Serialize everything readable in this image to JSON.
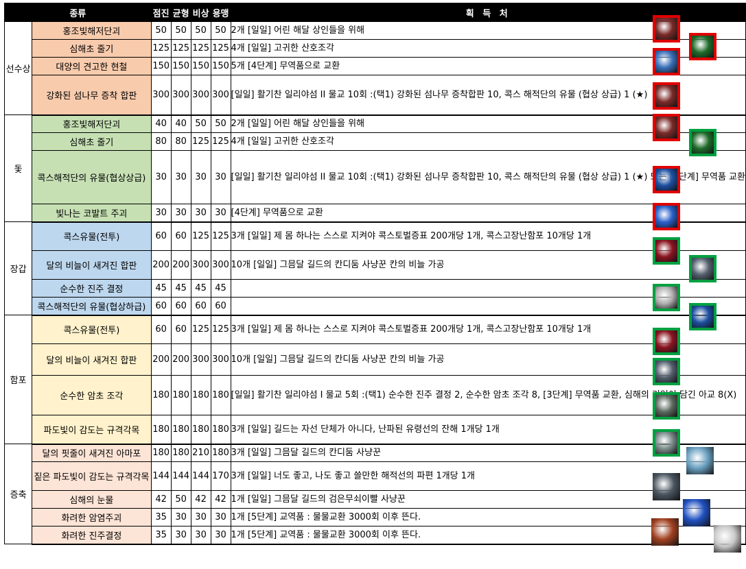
{
  "headers": {
    "kind": "종류",
    "jeomjin": "점진",
    "gyunhyeong": "균형",
    "bisang": "비상",
    "yongmaeng": "용맹",
    "source": "획 득 처"
  },
  "colors": {
    "jeomjin": "#ffff00",
    "gyunhyeong": "#92d050",
    "bisang": "#00b0f0",
    "yongmaeng": "#ff7c80",
    "orange_rows": "#f8cbad",
    "green_rows": "#c6e0b4",
    "blue_rows": "#bdd7ee",
    "yellow_rows": "#fff2cc",
    "peach_rows": "#fce4d6",
    "icon_frame_red": "#e00000",
    "icon_frame_green": "#00a040"
  },
  "groups": [
    {
      "category": "선수상",
      "rows": [
        {
          "name": "홍조빛해저단괴",
          "v": [
            "50",
            "50",
            "50",
            "50"
          ],
          "source": "2개 [일일] 어린 해달 상인들을 위해"
        },
        {
          "name": "심해초 줄기",
          "v": [
            "125",
            "125",
            "125",
            "125"
          ],
          "source": "4개 [일일] 고귀한 산호조각"
        },
        {
          "name": "대양의 견고한 현철",
          "v": [
            "150",
            "150",
            "150",
            "150"
          ],
          "source": "5개 [4단계] 무역품으로 교환"
        },
        {
          "name": "강화된 섬나무 증착 합판",
          "v": [
            "300",
            "300",
            "300",
            "300"
          ],
          "source": "[일일] 활기찬 일리야섬 II 물교 10회 :(택1)\n강화된 섬나무 증착합판 10,\n콕스 해적단의 유물 (협상 상급) 1 (★)"
        }
      ]
    },
    {
      "category": "돛",
      "rows": [
        {
          "name": "홍조빛해저단괴",
          "v": [
            "40",
            "40",
            "50",
            "50"
          ],
          "source": "2개 [일일] 어린 해달 상인들을 위해"
        },
        {
          "name": "심해초 줄기",
          "v": [
            "80",
            "80",
            "125",
            "125"
          ],
          "source": "4개 [일일] 고귀한 산호조각"
        },
        {
          "name": "콕스해적단의 유물(협상상급)",
          "v": [
            "30",
            "30",
            "30",
            "30"
          ],
          "source": "[일일] 활기찬 일리야섬 II 물교 10회 :(택1)\n강화된 섬나무 증착합판 10,\n콕스 해적단의 유물 (협상 상급) 1 (★)\n또는 [4단계] 무역품 교환"
        },
        {
          "name": "빛나는 코발트 주괴",
          "v": [
            "30",
            "30",
            "30",
            "30"
          ],
          "source": "[4단계] 무역품으로 교환"
        }
      ]
    },
    {
      "category": "장갑",
      "rows": [
        {
          "name": "콕스유물(전투)",
          "v": [
            "60",
            "60",
            "125",
            "125"
          ],
          "source": "3개 [일일] 제 몸 하나는 스스로 지켜야\n콕스토벌증표 200개당 1개, 콕스고장난함포 10개당 1개"
        },
        {
          "name": "달의 비늘이 새겨진 합판",
          "v": [
            "200",
            "200",
            "300",
            "300"
          ],
          "source": "10개 [일일] 그믐달 길드의 칸디둠 사냥꾼\n칸의 비늘 가공"
        },
        {
          "name": "순수한 진주 결정",
          "v": [
            "45",
            "45",
            "45",
            "45"
          ],
          "source": ""
        },
        {
          "name": "콕스해적단의 유물(협상하급)",
          "v": [
            "60",
            "60",
            "60",
            "60"
          ],
          "source": ""
        }
      ]
    },
    {
      "category": "함포",
      "rows": [
        {
          "name": "콕스유물(전투)",
          "v": [
            "60",
            "60",
            "125",
            "125"
          ],
          "source": "3개 [일일] 제 몸 하나는 스스로 지켜야\n콕스토벌증표 200개당 1개, 콕스고장난함포 10개당 1개"
        },
        {
          "name": "달의 비늘이 새겨진 합판",
          "v": [
            "200",
            "200",
            "300",
            "300"
          ],
          "source": "10개 [일일] 그믐달 길드의 칸디둠 사냥꾼\n칸의 비늘 가공"
        },
        {
          "name": "순수한 암초 조각",
          "v": [
            "180",
            "180",
            "180",
            "180"
          ],
          "source": "[일일] 활기찬 일리야섬 I 물교 5회 :(택1)\n순수한 진주 결정 2, 순수한 암초 조각 8,\n[3단계] 무역품 교환, 심해의 기억이 담긴 아교 8(X)"
        },
        {
          "name": "파도빛이 감도는 규격각목",
          "v": [
            "180",
            "180",
            "180",
            "180"
          ],
          "source": "3개 [일일] 길드는 자선 단체가 아니다,\n난파된 유령선의 잔해 1개당 1개"
        }
      ]
    },
    {
      "category": "증축",
      "rows": [
        {
          "name": "달의 핏줄이 새겨진 아마포",
          "v": [
            "180",
            "180",
            "210",
            "180"
          ],
          "source": "3개 [일일] 그믐달 길드의 칸디둠 사냥꾼"
        },
        {
          "name": "짙은 파도빛이 감도는 규격각목",
          "v": [
            "144",
            "144",
            "144",
            "170"
          ],
          "source": "3개 [일일] 너도 좋고, 나도 좋고\n쓸만한 해적선의 파편 1개당 1개"
        },
        {
          "name": "심해의 눈물",
          "v": [
            "42",
            "50",
            "42",
            "42"
          ],
          "source": "1개 [일일] 그믐달 길드의 검은무쇠이빨 사냥꾼"
        },
        {
          "name": "화려한 암염주괴",
          "v": [
            "35",
            "30",
            "30",
            "30"
          ],
          "source": "1개 [5단계] 교역품 : 물물교환 3000회 이후 뜬다."
        },
        {
          "name": "화려한 진주결정",
          "v": [
            "35",
            "30",
            "30",
            "30"
          ],
          "source": "1개 [5단계] 교역품 : 물물교환 3000회 이후 뜬다."
        }
      ]
    }
  ],
  "icons": [
    {
      "name": "red-ore-icon",
      "frame": "red",
      "color": "#7a2a28"
    },
    {
      "name": "seaweed-stem-icon",
      "frame": "red",
      "color": "#1f6b2a"
    },
    {
      "name": "blue-crystal-icon",
      "frame": "red",
      "color": "#3a6fb8"
    },
    {
      "name": "red-ore-icon",
      "frame": "red",
      "color": "#7a2a28"
    },
    {
      "name": "red-ore-icon",
      "frame": "red",
      "color": "#7a2a28"
    },
    {
      "name": "seaweed-stem-icon",
      "frame": "green",
      "color": "#1f6b2a"
    },
    {
      "name": "blue-relic-icon",
      "frame": "red",
      "color": "#1c4fa0"
    },
    {
      "name": "cobalt-ingot-icon",
      "frame": "red",
      "color": "#2a5fc9"
    },
    {
      "name": "red-relic-icon",
      "frame": "green",
      "color": "#8a1420"
    },
    {
      "name": "scale-plank-icon",
      "frame": "green",
      "color": "#54606e"
    },
    {
      "name": "pearl-crystal-icon",
      "frame": "green",
      "color": "#b0b0b0"
    },
    {
      "name": "blue-relic-icon",
      "frame": "green",
      "color": "#1c4fa0"
    },
    {
      "name": "red-relic-icon",
      "frame": "green",
      "color": "#8a1420"
    },
    {
      "name": "scale-plank-icon",
      "frame": "green",
      "color": "#54606e"
    },
    {
      "name": "reef-shard-icon",
      "frame": "green",
      "color": "#5b6a5e"
    },
    {
      "name": "timber-icon",
      "frame": "green",
      "color": "#7b8d8b"
    },
    {
      "name": "linen-icon",
      "frame": "none",
      "color": "#6aa0c0"
    },
    {
      "name": "dark-timber-icon",
      "frame": "none",
      "color": "#4a5560"
    },
    {
      "name": "sea-tear-icon",
      "frame": "none",
      "color": "#2050c0"
    },
    {
      "name": "salt-ingot-icon",
      "frame": "none",
      "color": "#a04020"
    },
    {
      "name": "pearl-white-icon",
      "frame": "none",
      "color": "#c8c8c8"
    }
  ]
}
